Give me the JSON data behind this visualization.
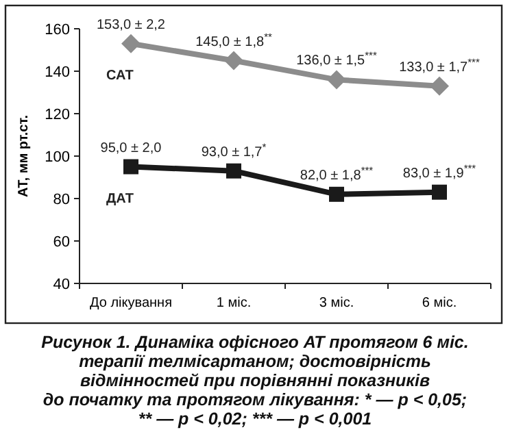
{
  "chart_data": {
    "type": "line",
    "ylabel": "АТ, мм рт.ст.",
    "categories": [
      "До лікування",
      "1 міс.",
      "3 міс.",
      "6 міс."
    ],
    "series": [
      {
        "name": "САТ",
        "color": "#8c8c8c",
        "marker": "diamond",
        "values": [
          153,
          145,
          136,
          133
        ],
        "value_labels": [
          "153,0 ± 2,2",
          "145,0 ± 1,8$^{**}$",
          "136,0 ± 1,5$^{***}$",
          "133,0 ± 1,7$^{***}$"
        ]
      },
      {
        "name": "ДАТ",
        "color": "#1a1a1a",
        "marker": "square",
        "values": [
          95,
          93,
          82,
          83
        ],
        "value_labels": [
          "95,0 ± 2,0",
          "93,0 ± 1,7$^{*}$",
          "82,0 ± 1,8$^{***}$",
          "83,0 ± 1,9$^{***}$"
        ]
      }
    ],
    "ylim": [
      40,
      160
    ],
    "yticks": [
      40,
      60,
      80,
      100,
      120,
      140,
      160
    ],
    "grid": false,
    "annotations": [
      "Рисунок 1. Динаміка офісного АТ протягом 6 міс.",
      "терапії телмісартаном; достовірність",
      "відмінностей при порівнянні показників",
      "до початку та протягом лікування: * — p < 0,05;",
      "** — p < 0,02; *** — p < 0,001"
    ]
  }
}
